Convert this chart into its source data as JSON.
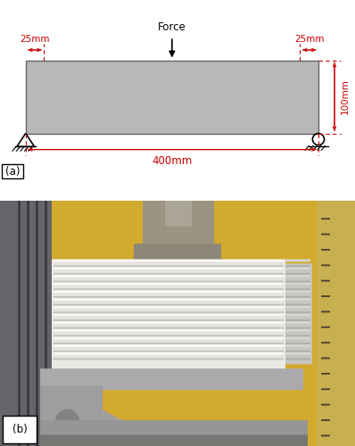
{
  "fig_width": 3.98,
  "fig_height": 5.0,
  "dpi": 100,
  "bg_color": "#ffffff",
  "panel_a": {
    "beam_color": "#b8b8b8",
    "beam_edge_color": "#666666",
    "dim_color": "#cc0000",
    "force_label": "Force",
    "label_25mm": "25mm",
    "label_100mm": "100mm",
    "label_400mm": "400mm"
  },
  "label_a": "(a)",
  "label_b": "(b)"
}
